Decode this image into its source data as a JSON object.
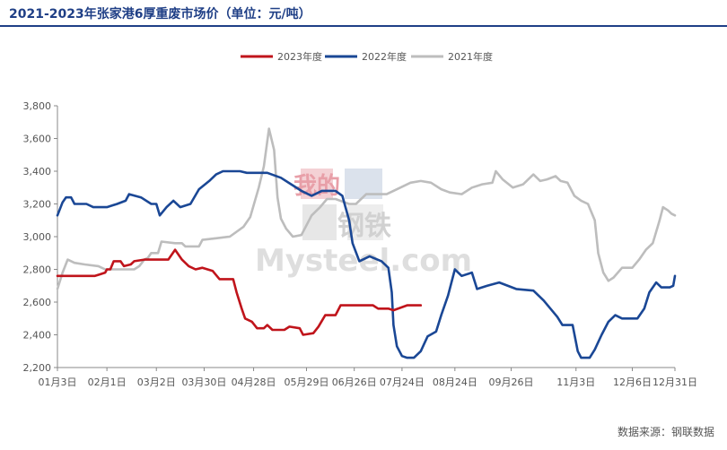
{
  "title": "2021-2023年张家港6厚重废市场价（单位：元/吨）",
  "source": "数据来源：钢联数据",
  "watermark": {
    "text_top": "我的",
    "text_bottom": "钢铁",
    "text_brand": "Mysteel.com"
  },
  "colors": {
    "title": "#1f3f86",
    "s2023": "#c0141b",
    "s2022": "#1a4795",
    "s2021": "#bdbdbd",
    "axis": "#888888"
  },
  "chart_data": {
    "type": "line",
    "title": "2021-2023年张家港6厚重废市场价（单位：元/吨）",
    "xlabel": "",
    "ylabel": "",
    "ylim": [
      2200,
      3800
    ],
    "yticks": [
      2200,
      2400,
      2600,
      2800,
      3000,
      3200,
      3400,
      3600,
      3800
    ],
    "ytick_labels": [
      "2,200",
      "2,400",
      "2,600",
      "2,800",
      "3,000",
      "3,200",
      "3,400",
      "3,600",
      "3,800"
    ],
    "xlim_day_of_year": [
      3,
      365
    ],
    "xticks": [
      {
        "label": "01月3日",
        "day": 3
      },
      {
        "label": "02月1日",
        "day": 32
      },
      {
        "label": "03月2日",
        "day": 61
      },
      {
        "label": "03月30日",
        "day": 89
      },
      {
        "label": "04月28日",
        "day": 118
      },
      {
        "label": "05月29日",
        "day": 149
      },
      {
        "label": "06月26日",
        "day": 177
      },
      {
        "label": "07月24日",
        "day": 205
      },
      {
        "label": "08月24日",
        "day": 236
      },
      {
        "label": "09月26日",
        "day": 269
      },
      {
        "label": "11月3日",
        "day": 307
      },
      {
        "label": "12月6日",
        "day": 340
      },
      {
        "label": "12月31日",
        "day": 365
      }
    ],
    "legend_position": "top-center",
    "grid": false,
    "series": [
      {
        "name": "2023年度",
        "color_key": "s2023",
        "points": [
          [
            3,
            2760
          ],
          [
            25,
            2760
          ],
          [
            28,
            2770
          ],
          [
            31,
            2780
          ],
          [
            32,
            2800
          ],
          [
            34,
            2800
          ],
          [
            36,
            2850
          ],
          [
            40,
            2850
          ],
          [
            42,
            2820
          ],
          [
            46,
            2830
          ],
          [
            48,
            2850
          ],
          [
            54,
            2860
          ],
          [
            68,
            2860
          ],
          [
            72,
            2920
          ],
          [
            76,
            2860
          ],
          [
            80,
            2820
          ],
          [
            84,
            2800
          ],
          [
            88,
            2810
          ],
          [
            94,
            2790
          ],
          [
            98,
            2740
          ],
          [
            106,
            2740
          ],
          [
            108,
            2660
          ],
          [
            111,
            2560
          ],
          [
            113,
            2500
          ],
          [
            117,
            2480
          ],
          [
            120,
            2440
          ],
          [
            124,
            2440
          ],
          [
            126,
            2460
          ],
          [
            129,
            2430
          ],
          [
            136,
            2430
          ],
          [
            139,
            2450
          ],
          [
            145,
            2440
          ],
          [
            147,
            2400
          ],
          [
            153,
            2410
          ],
          [
            156,
            2450
          ],
          [
            160,
            2520
          ],
          [
            166,
            2520
          ],
          [
            169,
            2580
          ],
          [
            188,
            2580
          ],
          [
            191,
            2560
          ],
          [
            197,
            2560
          ],
          [
            200,
            2550
          ],
          [
            208,
            2580
          ],
          [
            216,
            2580
          ]
        ]
      },
      {
        "name": "2022年度",
        "color_key": "s2022",
        "points": [
          [
            3,
            3130
          ],
          [
            6,
            3210
          ],
          [
            8,
            3240
          ],
          [
            11,
            3240
          ],
          [
            13,
            3200
          ],
          [
            20,
            3200
          ],
          [
            24,
            3180
          ],
          [
            32,
            3180
          ],
          [
            38,
            3200
          ],
          [
            43,
            3220
          ],
          [
            45,
            3260
          ],
          [
            52,
            3240
          ],
          [
            58,
            3200
          ],
          [
            61,
            3200
          ],
          [
            63,
            3130
          ],
          [
            67,
            3180
          ],
          [
            71,
            3220
          ],
          [
            75,
            3180
          ],
          [
            81,
            3200
          ],
          [
            86,
            3290
          ],
          [
            92,
            3340
          ],
          [
            96,
            3380
          ],
          [
            100,
            3400
          ],
          [
            110,
            3400
          ],
          [
            114,
            3390
          ],
          [
            126,
            3390
          ],
          [
            134,
            3360
          ],
          [
            140,
            3320
          ],
          [
            146,
            3280
          ],
          [
            152,
            3250
          ],
          [
            158,
            3280
          ],
          [
            166,
            3280
          ],
          [
            170,
            3250
          ],
          [
            174,
            3100
          ],
          [
            176,
            2960
          ],
          [
            180,
            2850
          ],
          [
            186,
            2880
          ],
          [
            193,
            2850
          ],
          [
            197,
            2810
          ],
          [
            199,
            2660
          ],
          [
            200,
            2460
          ],
          [
            202,
            2330
          ],
          [
            205,
            2270
          ],
          [
            208,
            2260
          ],
          [
            212,
            2260
          ],
          [
            216,
            2300
          ],
          [
            220,
            2390
          ],
          [
            225,
            2420
          ],
          [
            228,
            2520
          ],
          [
            232,
            2640
          ],
          [
            236,
            2800
          ],
          [
            240,
            2760
          ],
          [
            246,
            2780
          ],
          [
            249,
            2680
          ],
          [
            255,
            2700
          ],
          [
            262,
            2720
          ],
          [
            272,
            2680
          ],
          [
            282,
            2670
          ],
          [
            288,
            2610
          ],
          [
            292,
            2560
          ],
          [
            296,
            2510
          ],
          [
            299,
            2460
          ],
          [
            305,
            2460
          ],
          [
            308,
            2300
          ],
          [
            310,
            2260
          ],
          [
            315,
            2260
          ],
          [
            318,
            2310
          ],
          [
            322,
            2400
          ],
          [
            326,
            2480
          ],
          [
            330,
            2520
          ],
          [
            334,
            2500
          ],
          [
            343,
            2500
          ],
          [
            347,
            2560
          ],
          [
            350,
            2660
          ],
          [
            354,
            2720
          ],
          [
            357,
            2690
          ],
          [
            362,
            2690
          ],
          [
            364,
            2700
          ],
          [
            365,
            2760
          ]
        ]
      },
      {
        "name": "2021年度",
        "color_key": "s2021",
        "points": [
          [
            3,
            2680
          ],
          [
            6,
            2780
          ],
          [
            9,
            2860
          ],
          [
            13,
            2840
          ],
          [
            19,
            2830
          ],
          [
            27,
            2820
          ],
          [
            31,
            2800
          ],
          [
            48,
            2800
          ],
          [
            51,
            2820
          ],
          [
            54,
            2860
          ],
          [
            56,
            2870
          ],
          [
            58,
            2900
          ],
          [
            62,
            2900
          ],
          [
            64,
            2970
          ],
          [
            72,
            2960
          ],
          [
            76,
            2960
          ],
          [
            78,
            2940
          ],
          [
            86,
            2940
          ],
          [
            88,
            2980
          ],
          [
            96,
            2990
          ],
          [
            104,
            3000
          ],
          [
            112,
            3060
          ],
          [
            116,
            3120
          ],
          [
            121,
            3300
          ],
          [
            124,
            3430
          ],
          [
            127,
            3660
          ],
          [
            130,
            3530
          ],
          [
            132,
            3240
          ],
          [
            134,
            3110
          ],
          [
            137,
            3050
          ],
          [
            141,
            3000
          ],
          [
            146,
            3010
          ],
          [
            152,
            3130
          ],
          [
            157,
            3180
          ],
          [
            161,
            3230
          ],
          [
            166,
            3230
          ],
          [
            174,
            3200
          ],
          [
            178,
            3200
          ],
          [
            184,
            3260
          ],
          [
            196,
            3260
          ],
          [
            204,
            3300
          ],
          [
            210,
            3330
          ],
          [
            216,
            3340
          ],
          [
            222,
            3330
          ],
          [
            228,
            3290
          ],
          [
            233,
            3270
          ],
          [
            240,
            3260
          ],
          [
            246,
            3300
          ],
          [
            252,
            3320
          ],
          [
            258,
            3330
          ],
          [
            260,
            3400
          ],
          [
            264,
            3350
          ],
          [
            270,
            3300
          ],
          [
            276,
            3320
          ],
          [
            282,
            3380
          ],
          [
            286,
            3340
          ],
          [
            290,
            3350
          ],
          [
            295,
            3370
          ],
          [
            298,
            3340
          ],
          [
            302,
            3330
          ],
          [
            306,
            3250
          ],
          [
            310,
            3220
          ],
          [
            314,
            3200
          ],
          [
            318,
            3100
          ],
          [
            320,
            2900
          ],
          [
            323,
            2780
          ],
          [
            326,
            2730
          ],
          [
            329,
            2750
          ],
          [
            334,
            2810
          ],
          [
            340,
            2810
          ],
          [
            344,
            2860
          ],
          [
            348,
            2920
          ],
          [
            352,
            2960
          ],
          [
            356,
            3100
          ],
          [
            358,
            3180
          ],
          [
            361,
            3160
          ],
          [
            363,
            3140
          ],
          [
            365,
            3130
          ]
        ]
      }
    ]
  }
}
